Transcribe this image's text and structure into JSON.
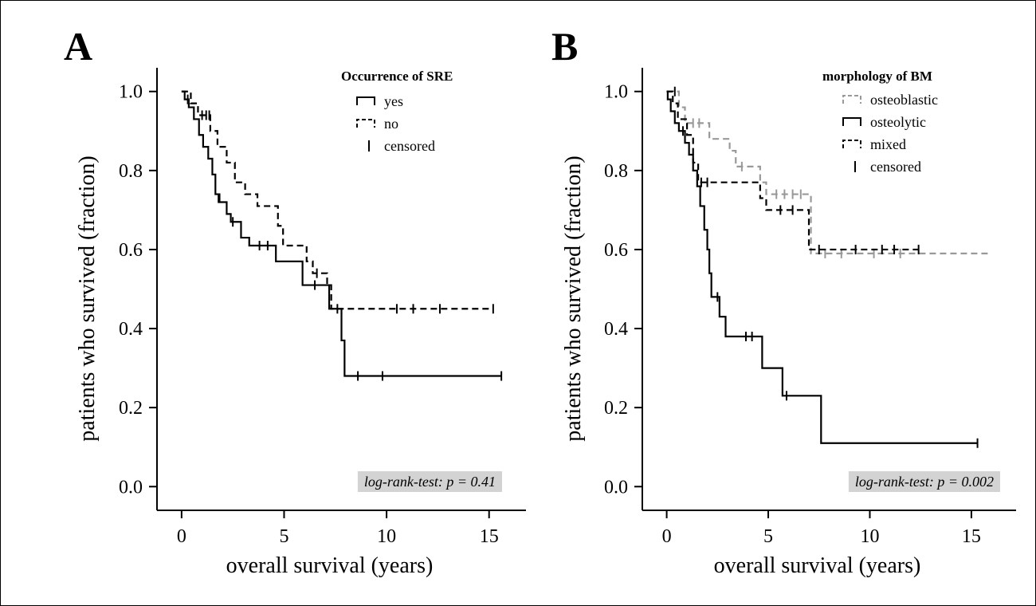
{
  "chart_data": [
    {
      "type": "line",
      "panel_label": "A",
      "xlabel": "overall survival (years)",
      "ylabel": "patients who survived (fraction)",
      "xlim": [
        -1.2,
        16.8
      ],
      "ylim": [
        -0.06,
        1.06
      ],
      "x_ticks": [
        0,
        5,
        10,
        15
      ],
      "y_ticks": [
        0.0,
        0.2,
        0.4,
        0.6,
        0.8,
        1.0
      ],
      "y_tick_labels": [
        "0.0",
        "0.2",
        "0.4",
        "0.6",
        "0.8",
        "1.0"
      ],
      "legend": {
        "title": "Occurrence of SRE",
        "position": "top-right",
        "entries": [
          {
            "label": "yes",
            "style": "solid",
            "color": "#000000"
          },
          {
            "label": "no",
            "style": "dashed",
            "color": "#000000"
          },
          {
            "label": "censored",
            "style": "censor",
            "color": "#000000"
          }
        ]
      },
      "annotation": {
        "text": "log-rank-test: p = 0.41",
        "position": "bottom-right"
      },
      "series": [
        {
          "name": "yes",
          "style": "solid",
          "color": "#000000",
          "steps": [
            [
              0,
              1.0
            ],
            [
              0.15,
              0.98
            ],
            [
              0.35,
              0.96
            ],
            [
              0.6,
              0.93
            ],
            [
              0.85,
              0.89
            ],
            [
              1.05,
              0.86
            ],
            [
              1.3,
              0.83
            ],
            [
              1.5,
              0.79
            ],
            [
              1.65,
              0.74
            ],
            [
              1.85,
              0.72
            ],
            [
              2.2,
              0.69
            ],
            [
              2.4,
              0.67
            ],
            [
              2.9,
              0.63
            ],
            [
              3.3,
              0.61
            ],
            [
              4.6,
              0.57
            ],
            [
              5.9,
              0.51
            ],
            [
              7.2,
              0.45
            ],
            [
              7.8,
              0.37
            ],
            [
              7.95,
              0.28
            ],
            [
              15.6,
              0.28
            ]
          ],
          "censored": [
            [
              0.3,
              0.98
            ],
            [
              1.8,
              0.73
            ],
            [
              2.5,
              0.67
            ],
            [
              3.8,
              0.61
            ],
            [
              4.2,
              0.61
            ],
            [
              6.5,
              0.51
            ],
            [
              8.6,
              0.28
            ],
            [
              9.8,
              0.28
            ],
            [
              15.6,
              0.28
            ]
          ]
        },
        {
          "name": "no",
          "style": "dashed",
          "color": "#000000",
          "steps": [
            [
              0,
              1.0
            ],
            [
              0.45,
              0.97
            ],
            [
              0.8,
              0.94
            ],
            [
              1.4,
              0.9
            ],
            [
              1.75,
              0.86
            ],
            [
              2.2,
              0.82
            ],
            [
              2.6,
              0.77
            ],
            [
              3.1,
              0.74
            ],
            [
              3.7,
              0.71
            ],
            [
              4.7,
              0.66
            ],
            [
              4.95,
              0.61
            ],
            [
              6.1,
              0.57
            ],
            [
              6.4,
              0.54
            ],
            [
              7.1,
              0.51
            ],
            [
              7.3,
              0.45
            ],
            [
              15.2,
              0.45
            ]
          ],
          "censored": [
            [
              1.0,
              0.94
            ],
            [
              1.2,
              0.94
            ],
            [
              1.35,
              0.94
            ],
            [
              6.6,
              0.54
            ],
            [
              7.6,
              0.45
            ],
            [
              10.5,
              0.45
            ],
            [
              11.3,
              0.45
            ],
            [
              12.6,
              0.45
            ],
            [
              15.2,
              0.45
            ]
          ]
        }
      ]
    },
    {
      "type": "line",
      "panel_label": "B",
      "xlabel": "overall survival (years)",
      "ylabel": "patients who survived (fraction)",
      "xlim": [
        -1.2,
        17.2
      ],
      "ylim": [
        -0.06,
        1.06
      ],
      "x_ticks": [
        0,
        5,
        10,
        15
      ],
      "y_ticks": [
        0.0,
        0.2,
        0.4,
        0.6,
        0.8,
        1.0
      ],
      "y_tick_labels": [
        "0.0",
        "0.2",
        "0.4",
        "0.6",
        "0.8",
        "1.0"
      ],
      "legend": {
        "title": "morphology of BM",
        "position": "top-right",
        "entries": [
          {
            "label": "osteoblastic",
            "style": "dashed",
            "color": "#999999"
          },
          {
            "label": "osteolytic",
            "style": "solid",
            "color": "#000000"
          },
          {
            "label": "mixed",
            "style": "dashed",
            "color": "#000000"
          },
          {
            "label": "censored",
            "style": "censor",
            "color": "#000000"
          }
        ]
      },
      "annotation": {
        "text": "log-rank-test: p = 0.002",
        "position": "bottom-right"
      },
      "series": [
        {
          "name": "osteoblastic",
          "style": "dashed",
          "color": "#999999",
          "steps": [
            [
              0,
              1.0
            ],
            [
              0.6,
              0.96
            ],
            [
              0.9,
              0.92
            ],
            [
              2.1,
              0.88
            ],
            [
              3.1,
              0.85
            ],
            [
              3.4,
              0.81
            ],
            [
              4.6,
              0.77
            ],
            [
              4.9,
              0.74
            ],
            [
              7.1,
              0.59
            ],
            [
              15.9,
              0.59
            ]
          ],
          "censored": [
            [
              1.3,
              0.92
            ],
            [
              1.6,
              0.92
            ],
            [
              3.7,
              0.81
            ],
            [
              5.4,
              0.74
            ],
            [
              5.8,
              0.74
            ],
            [
              6.2,
              0.74
            ],
            [
              6.6,
              0.74
            ],
            [
              7.8,
              0.59
            ],
            [
              8.6,
              0.59
            ],
            [
              10.2,
              0.59
            ],
            [
              11.5,
              0.59
            ]
          ]
        },
        {
          "name": "osteolytic",
          "style": "solid",
          "color": "#000000",
          "steps": [
            [
              0,
              1.0
            ],
            [
              0.05,
              0.98
            ],
            [
              0.2,
              0.95
            ],
            [
              0.4,
              0.92
            ],
            [
              0.6,
              0.9
            ],
            [
              0.9,
              0.87
            ],
            [
              1.1,
              0.84
            ],
            [
              1.3,
              0.8
            ],
            [
              1.5,
              0.76
            ],
            [
              1.65,
              0.71
            ],
            [
              1.85,
              0.65
            ],
            [
              2.0,
              0.6
            ],
            [
              2.1,
              0.54
            ],
            [
              2.2,
              0.48
            ],
            [
              2.6,
              0.43
            ],
            [
              2.9,
              0.38
            ],
            [
              4.7,
              0.3
            ],
            [
              5.7,
              0.23
            ],
            [
              7.6,
              0.11
            ],
            [
              15.3,
              0.11
            ]
          ],
          "censored": [
            [
              0.8,
              0.9
            ],
            [
              2.5,
              0.48
            ],
            [
              3.9,
              0.38
            ],
            [
              4.2,
              0.38
            ],
            [
              5.9,
              0.23
            ],
            [
              15.3,
              0.11
            ]
          ]
        },
        {
          "name": "mixed",
          "style": "dashed",
          "color": "#000000",
          "steps": [
            [
              0,
              1.0
            ],
            [
              0.3,
              0.97
            ],
            [
              0.55,
              0.93
            ],
            [
              1.0,
              0.89
            ],
            [
              1.3,
              0.82
            ],
            [
              1.55,
              0.77
            ],
            [
              4.6,
              0.73
            ],
            [
              4.9,
              0.7
            ],
            [
              7.0,
              0.6
            ],
            [
              12.4,
              0.6
            ]
          ],
          "censored": [
            [
              0.4,
              1.0
            ],
            [
              1.7,
              0.77
            ],
            [
              2.0,
              0.77
            ],
            [
              5.6,
              0.7
            ],
            [
              6.2,
              0.7
            ],
            [
              7.5,
              0.6
            ],
            [
              9.3,
              0.6
            ],
            [
              10.6,
              0.6
            ],
            [
              11.2,
              0.6
            ],
            [
              12.4,
              0.6
            ]
          ]
        }
      ]
    }
  ]
}
